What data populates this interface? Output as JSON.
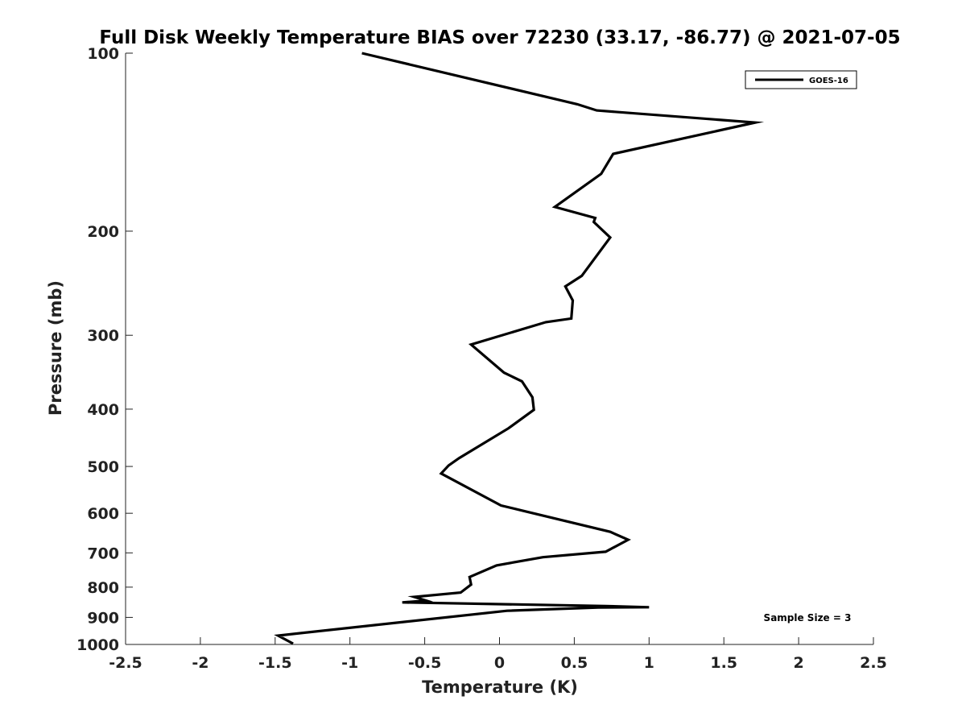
{
  "chart_data": {
    "type": "line",
    "title": "Full Disk Weekly Temperature BIAS over 72230 (33.17, -86.77) @ 2021-07-05",
    "xlabel": "Temperature (K)",
    "ylabel": "Pressure (mb)",
    "xlim": [
      -2.5,
      2.5
    ],
    "ylim": [
      1000,
      100
    ],
    "yscale": "log",
    "xticks": [
      -2.5,
      -2,
      -1.5,
      -1,
      -0.5,
      0,
      0.5,
      1,
      1.5,
      2,
      2.5
    ],
    "xtick_labels": [
      "-2.5",
      "-2",
      "-1.5",
      "-1",
      "-0.5",
      "0",
      "0.5",
      "1",
      "1.5",
      "2",
      "2.5"
    ],
    "yticks": [
      100,
      200,
      300,
      400,
      500,
      600,
      700,
      800,
      900,
      1000
    ],
    "ytick_labels": [
      "100",
      "200",
      "300",
      "400",
      "500",
      "600",
      "700",
      "800",
      "900",
      "1000"
    ],
    "grid": false,
    "legend_position": "top-right",
    "annotation": "Sample Size = 3",
    "series": [
      {
        "name": "GOES-16",
        "color": "#000000",
        "x": [
          -0.92,
          0.52,
          0.65,
          1.71,
          0.76,
          0.68,
          0.37,
          0.64,
          0.63,
          0.74,
          0.55,
          0.44,
          0.49,
          0.48,
          0.31,
          -0.19,
          0.03,
          0.15,
          0.22,
          0.23,
          0.06,
          -0.27,
          -0.34,
          -0.39,
          0.01,
          0.74,
          0.86,
          0.71,
          0.29,
          -0.02,
          -0.2,
          -0.19,
          -0.26,
          -0.57,
          -0.49,
          -0.65,
          0.71,
          1.0,
          0.66,
          0.05,
          -1.48,
          -1.38
        ],
        "y": [
          100,
          122,
          125,
          131,
          148,
          160,
          182,
          190,
          193,
          205,
          238,
          248,
          262,
          281,
          285,
          311,
          347,
          359,
          382,
          401,
          431,
          484,
          498,
          514,
          582,
          645,
          665,
          697,
          712,
          735,
          769,
          792,
          817,
          831,
          843,
          849,
          861,
          865,
          866,
          877,
          966,
          997
        ]
      }
    ]
  }
}
